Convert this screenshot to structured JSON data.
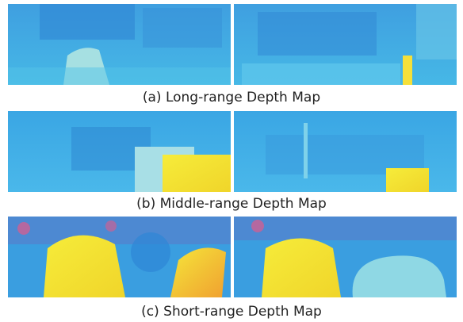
{
  "figure": {
    "panels": [
      {
        "caption": "(a) Long-range  Depth Map"
      },
      {
        "caption": "(b) Middle-range  Depth Map"
      },
      {
        "caption": "(c) Short-range  Depth Map"
      }
    ]
  }
}
